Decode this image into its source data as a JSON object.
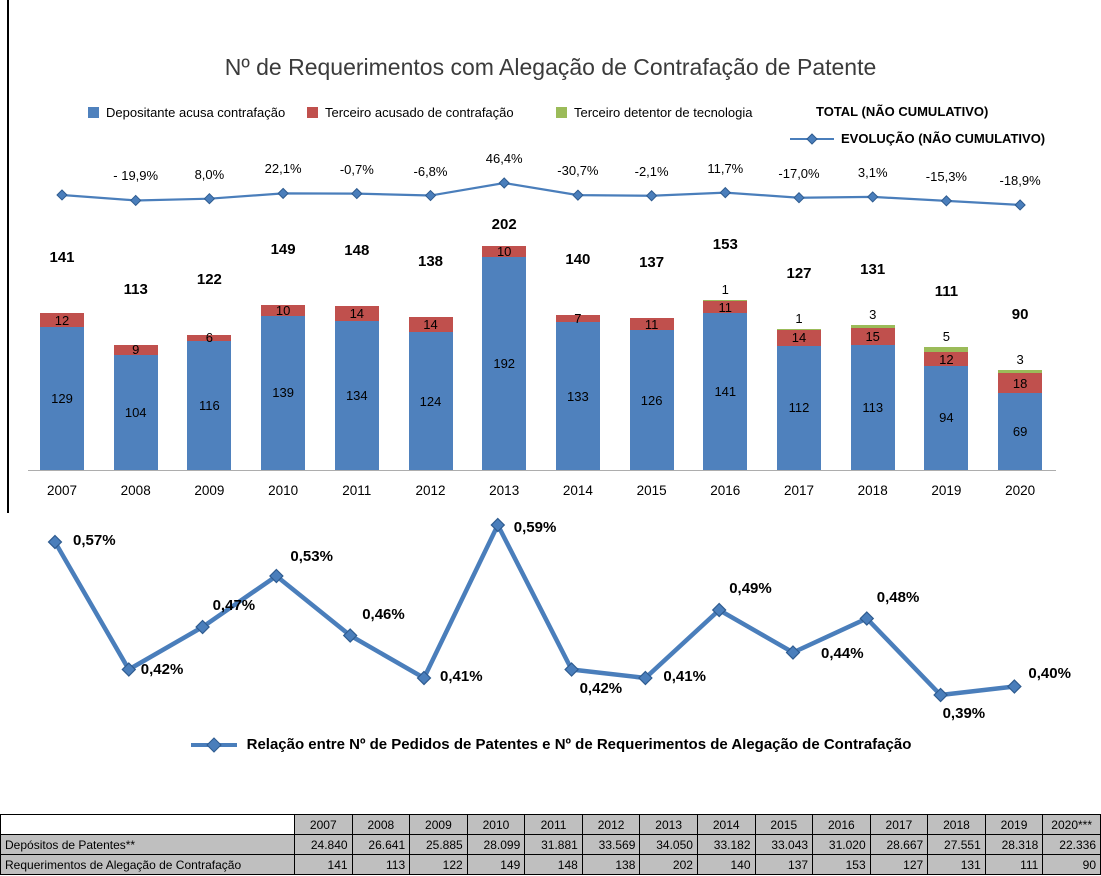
{
  "title": "Nº de Requerimentos com Alegação de Contrafação de Patente",
  "colors": {
    "depositante_blue": "#4f81bd",
    "terceiro_red": "#c0504d",
    "detentor_green": "#9bbb59",
    "line_blue": "#4a7ebb",
    "marker_edge_blue": "#2e5b8f",
    "table_cell_gray": "#bfbfbf"
  },
  "chart_data": [
    {
      "type": "bar",
      "stacked": true,
      "title": "Nº de Requerimentos com Alegação de Contrafação de Patente",
      "legend_position": "top",
      "value_axis_visible": false,
      "categories": [
        "2007",
        "2008",
        "2009",
        "2010",
        "2011",
        "2012",
        "2013",
        "2014",
        "2015",
        "2016",
        "2017",
        "2018",
        "2019",
        "2020"
      ],
      "series": [
        {
          "name": "Depositante acusa contrafação",
          "color": "#4f81bd",
          "values": [
            129,
            104,
            116,
            139,
            134,
            124,
            192,
            133,
            126,
            141,
            112,
            113,
            94,
            69
          ]
        },
        {
          "name": "Terceiro acusado de contrafação",
          "color": "#c0504d",
          "values": [
            12,
            9,
            6,
            10,
            14,
            14,
            10,
            7,
            11,
            11,
            14,
            15,
            12,
            18
          ]
        },
        {
          "name": "Terceiro detentor de tecnologia",
          "color": "#9bbb59",
          "values": [
            0,
            0,
            0,
            0,
            0,
            0,
            0,
            0,
            0,
            1,
            1,
            3,
            5,
            3
          ]
        }
      ],
      "total_series": {
        "name": "TOTAL (NÃO CUMULATIVO)",
        "values": [
          141,
          113,
          122,
          149,
          148,
          138,
          202,
          140,
          137,
          153,
          127,
          131,
          111,
          90
        ]
      },
      "evolution_series": {
        "name": "EVOLUÇÃO (NÃO CUMULATIVO)",
        "labels": [
          "",
          "- 19,9%",
          "8,0%",
          "22,1%",
          "-0,7%",
          "-6,8%",
          "46,4%",
          "-30,7%",
          "-2,1%",
          "11,7%",
          "-17,0%",
          "3,1%",
          "-15,3%",
          "-18,9%"
        ]
      }
    },
    {
      "type": "line",
      "axes_visible": false,
      "legend": "Relação entre Nº de Pedidos de Patentes e Nº de Requerimentos de Alegação de Contrafação",
      "categories": [
        "2007",
        "2008",
        "2009",
        "2010",
        "2011",
        "2012",
        "2013",
        "2014",
        "2015",
        "2016",
        "2017",
        "2018",
        "2019",
        "2020"
      ],
      "values": [
        0.57,
        0.42,
        0.47,
        0.53,
        0.46,
        0.41,
        0.59,
        0.42,
        0.41,
        0.49,
        0.44,
        0.48,
        0.39,
        0.4
      ],
      "point_labels": [
        "0,57%",
        "0,42%",
        "0,47%",
        "0,53%",
        "0,46%",
        "0,41%",
        "0,59%",
        "0,42%",
        "0,41%",
        "0,49%",
        "0,44%",
        "0,48%",
        "0,39%",
        "0,40%"
      ]
    },
    {
      "type": "table",
      "columns": [
        "",
        "2007",
        "2008",
        "2009",
        "2010",
        "2011",
        "2012",
        "2013",
        "2014",
        "2015",
        "2016",
        "2017",
        "2018",
        "2019",
        "2020***"
      ],
      "rows": [
        [
          "Depósitos de Patentes**",
          "24.840",
          "26.641",
          "25.885",
          "28.099",
          "31.881",
          "33.569",
          "34.050",
          "33.182",
          "33.043",
          "31.020",
          "28.667",
          "27.551",
          "28.318",
          "22.336"
        ],
        [
          "Requerimentos de Alegação de Contrafação",
          "141",
          "113",
          "122",
          "149",
          "148",
          "138",
          "202",
          "140",
          "137",
          "153",
          "127",
          "131",
          "111",
          "90"
        ]
      ]
    }
  ]
}
